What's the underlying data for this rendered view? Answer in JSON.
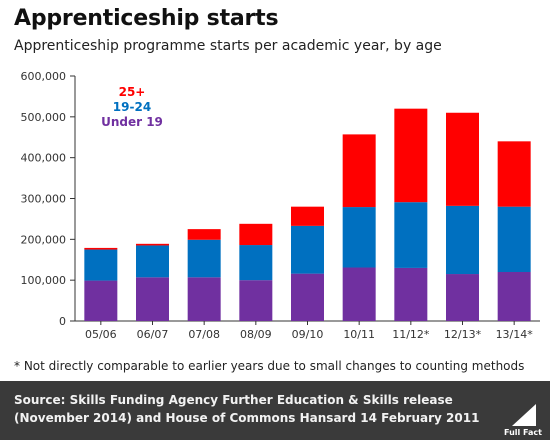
{
  "header": {
    "title": "Apprenticeship starts",
    "subtitle": "Apprenticeship programme starts per academic year, by age"
  },
  "footnote": "* Not directly comparable to earlier years due to small changes to counting methods",
  "footer": {
    "source_label": "Source:",
    "source_text": "Skills Funding Agency Further Education & Skills release (November 2014) and House of Commons Hansard 14 February 2011",
    "logo_text": "Full Fact"
  },
  "colors": {
    "under19": "#7030a0",
    "age19_24": "#0070c0",
    "age25plus": "#ff0000",
    "axis": "#333333",
    "grid": "#cccccc",
    "footer_bg": "#3a3a3a"
  },
  "chart_data": {
    "type": "bar",
    "stacked": true,
    "categories": [
      "05/06",
      "06/07",
      "07/08",
      "08/09",
      "09/10",
      "10/11",
      "11/12*",
      "12/13*",
      "13/14*"
    ],
    "series": [
      {
        "name": "Under 19",
        "color": "#7030a0",
        "values": [
          99000,
          107000,
          107000,
          100000,
          116000,
          131000,
          130000,
          115000,
          120000
        ]
      },
      {
        "name": "19-24",
        "color": "#0070c0",
        "values": [
          76000,
          78000,
          92000,
          86000,
          117000,
          148000,
          161000,
          167000,
          160000
        ]
      },
      {
        "name": "25+",
        "color": "#ff0000",
        "values": [
          4000,
          4000,
          26000,
          52000,
          47000,
          178000,
          229000,
          228000,
          160000
        ]
      }
    ],
    "yticks": [
      "0",
      "100,000",
      "200,000",
      "300,000",
      "400,000",
      "500,000",
      "600,000"
    ],
    "ylim": [
      0,
      600000
    ],
    "legend": [
      "25+",
      "19-24",
      "Under 19"
    ],
    "legend_position": "top-left",
    "grid": false
  }
}
